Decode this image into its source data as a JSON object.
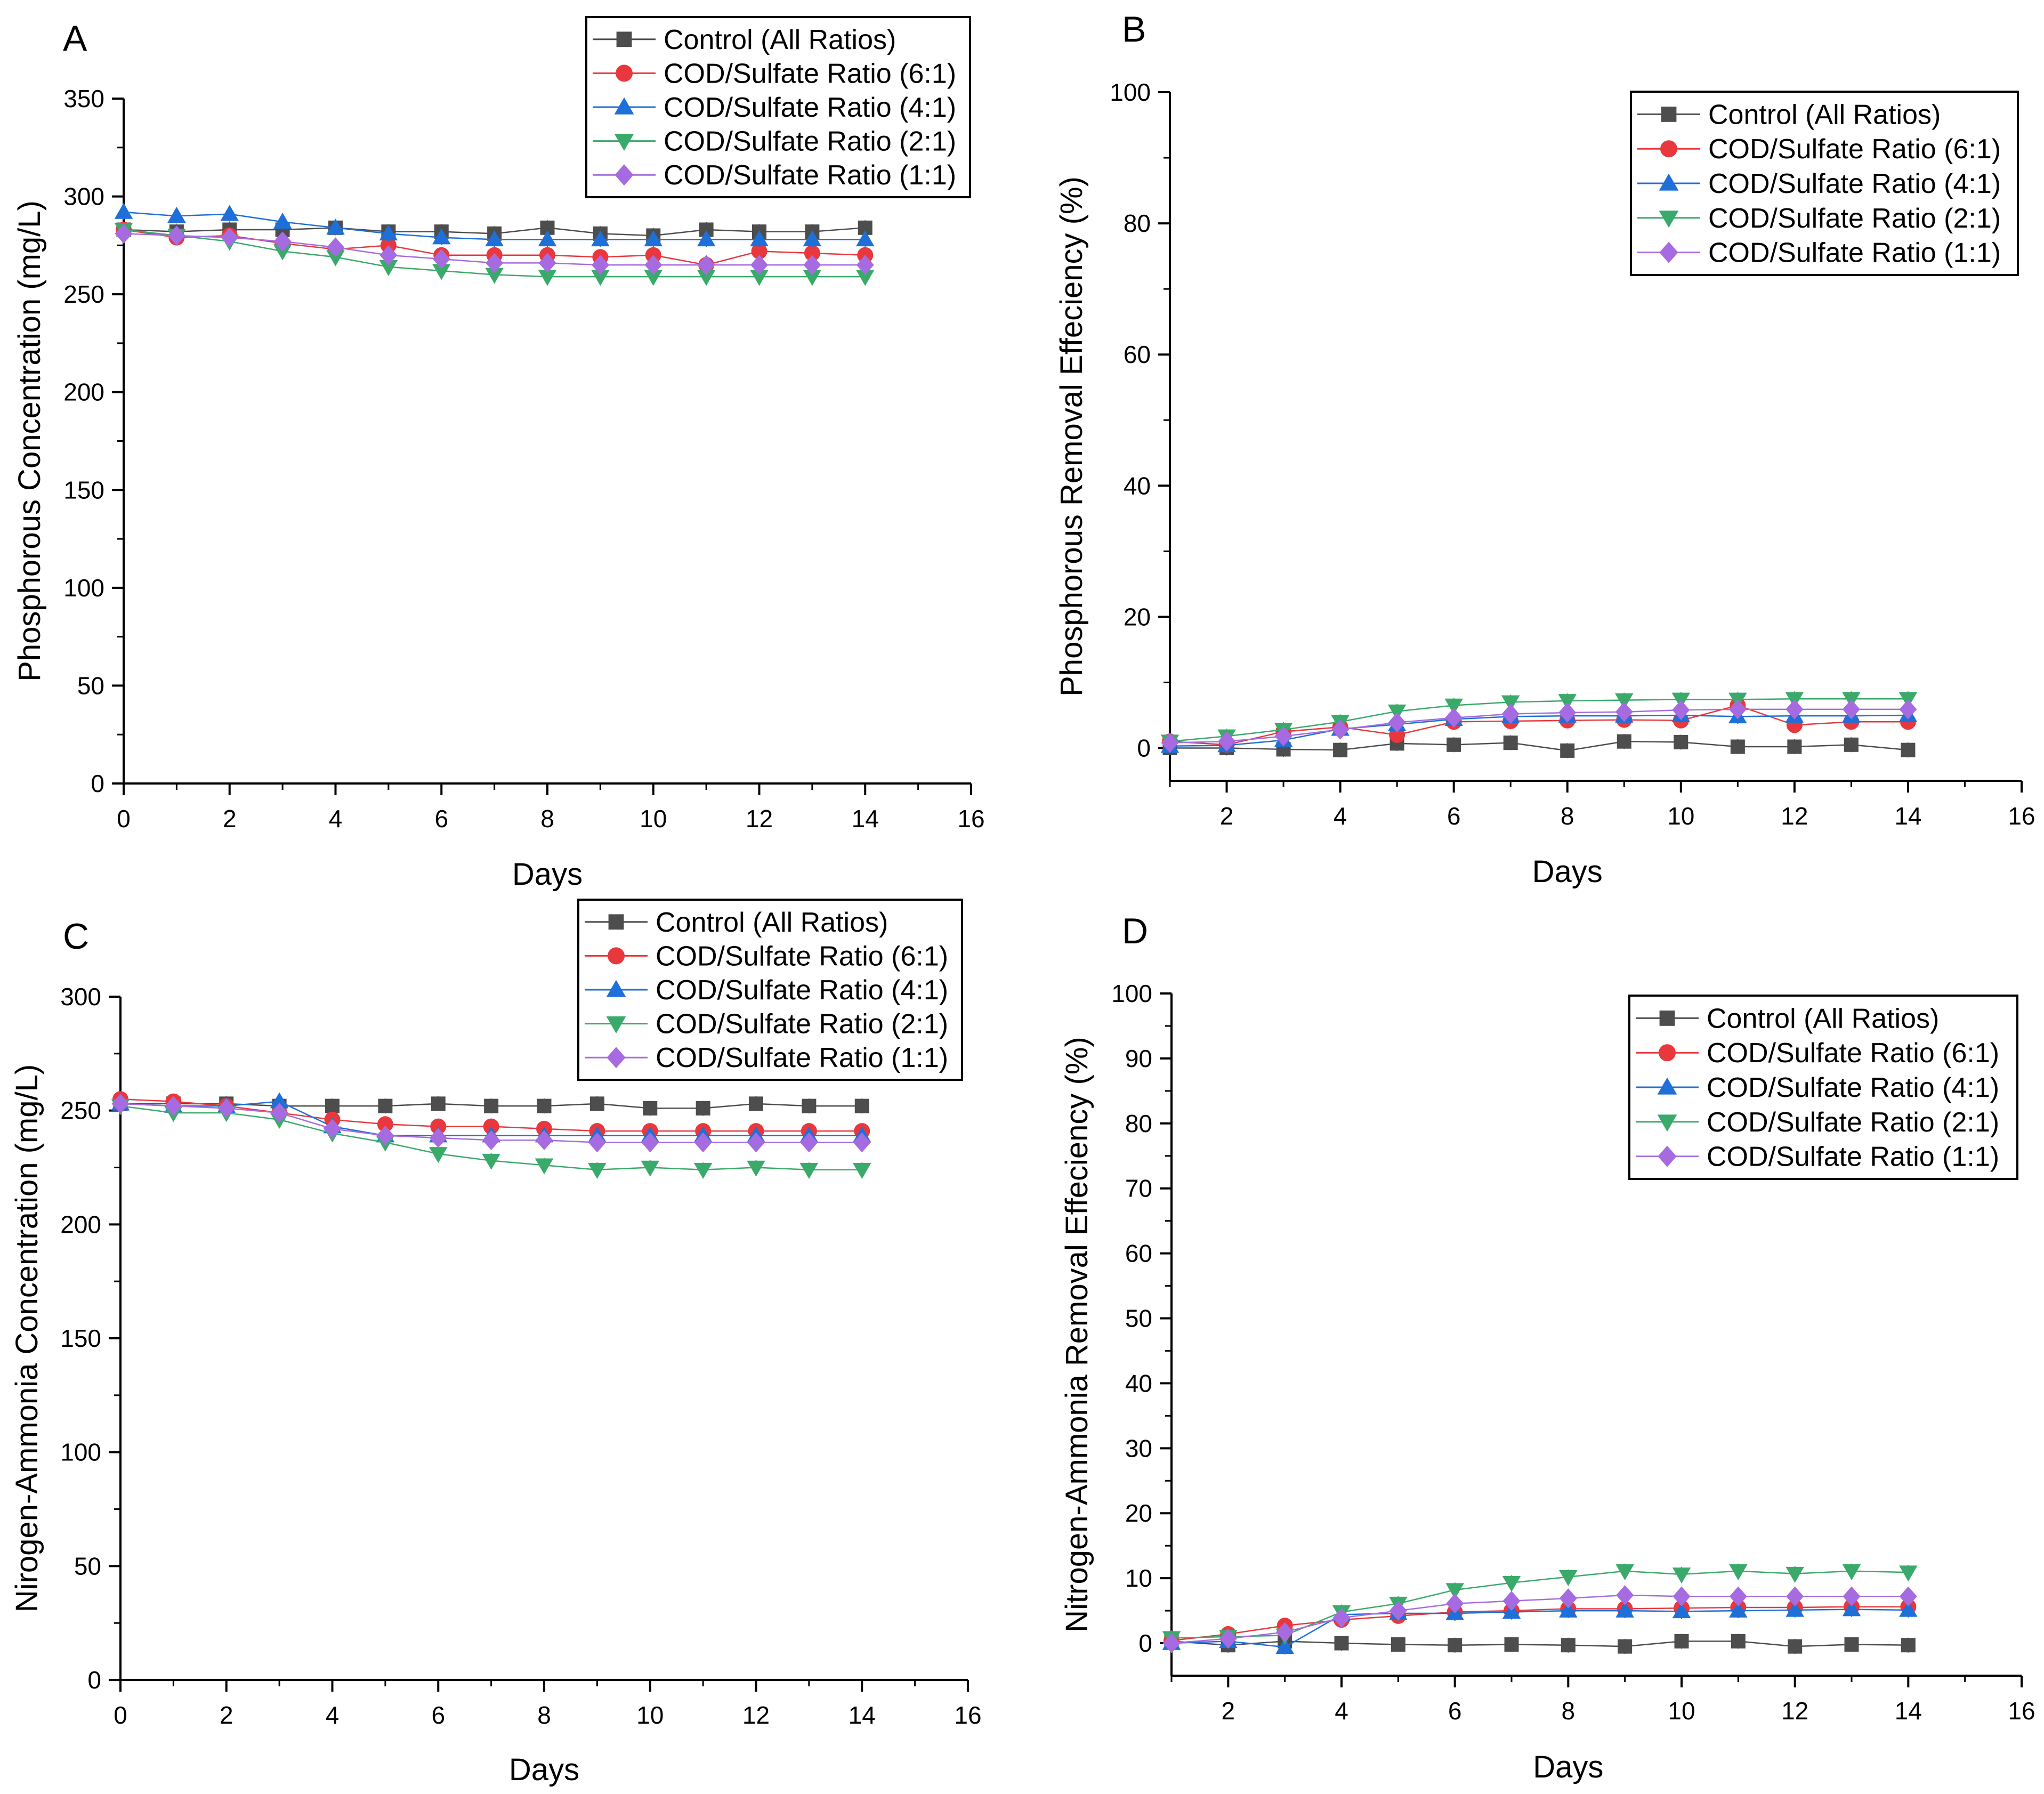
{
  "figure": {
    "panel_count": 4
  },
  "series_styles": [
    {
      "name": "Control (All Ratios)",
      "marker": "square",
      "color": "#4d4d4d"
    },
    {
      "name": "COD/Sulfate Ratio (6:1)",
      "marker": "circle",
      "color": "#e8383d"
    },
    {
      "name": "COD/Sulfate Ratio (4:1)",
      "marker": "triangle-up",
      "color": "#1f6fd8"
    },
    {
      "name": "COD/Sulfate Ratio (2:1)",
      "marker": "triangle-down",
      "color": "#3aaa6a"
    },
    {
      "name": "COD/Sulfate Ratio (1:1)",
      "marker": "diamond",
      "color": "#a66be0"
    }
  ],
  "chart_data": [
    {
      "panel": "A",
      "type": "line",
      "title": "",
      "xlabel": "Days",
      "ylabel": "Phosphorous Concentration (mg/L)",
      "xlim": [
        0,
        16
      ],
      "ylim": [
        0,
        350
      ],
      "xticks": [
        "0",
        "2",
        "4",
        "6",
        "8",
        "10",
        "12",
        "14",
        "16"
      ],
      "yticks": [
        "0",
        "50",
        "100",
        "150",
        "200",
        "250",
        "300",
        "350"
      ],
      "legend": "top-right",
      "x": [
        0,
        1,
        2,
        3,
        4,
        5,
        6,
        7,
        8,
        9,
        10,
        11,
        12,
        13,
        14
      ],
      "series": [
        {
          "name": "Control (All Ratios)",
          "values": [
            283,
            282,
            283,
            283,
            284,
            282,
            282,
            281,
            284,
            281,
            280,
            283,
            282,
            282,
            284
          ]
        },
        {
          "name": "COD/Sulfate Ratio (6:1)",
          "values": [
            283,
            279,
            280,
            276,
            273,
            275,
            270,
            270,
            270,
            269,
            270,
            265,
            272,
            271,
            270
          ]
        },
        {
          "name": "COD/Sulfate Ratio (4:1)",
          "values": [
            292,
            290,
            291,
            287,
            284,
            281,
            279,
            278,
            278,
            278,
            278,
            278,
            278,
            278,
            278
          ]
        },
        {
          "name": "COD/Sulfate Ratio (2:1)",
          "values": [
            283,
            280,
            277,
            272,
            269,
            264,
            262,
            260,
            259,
            259,
            259,
            259,
            259,
            259,
            259
          ]
        },
        {
          "name": "COD/Sulfate Ratio (1:1)",
          "values": [
            281,
            280,
            279,
            277,
            274,
            270,
            268,
            266,
            266,
            265,
            265,
            265,
            265,
            265,
            265
          ]
        }
      ]
    },
    {
      "panel": "B",
      "type": "line",
      "title": "",
      "xlabel": "Days",
      "ylabel": "Phosphorous Removal Effeciency (%)",
      "xlim": [
        1,
        16
      ],
      "ylim": [
        -5,
        100
      ],
      "xticks": [
        "2",
        "4",
        "6",
        "8",
        "10",
        "12",
        "14",
        "16"
      ],
      "yticks": [
        "0",
        "20",
        "40",
        "60",
        "80",
        "100"
      ],
      "legend": "top-right",
      "x": [
        1,
        2,
        3,
        4,
        5,
        6,
        7,
        8,
        9,
        10,
        11,
        12,
        13,
        14
      ],
      "series": [
        {
          "name": "Control (All Ratios)",
          "values": [
            0,
            0,
            -0.2,
            -0.3,
            0.7,
            0.5,
            0.8,
            -0.4,
            1.0,
            0.9,
            0.2,
            0.2,
            0.5,
            -0.3
          ]
        },
        {
          "name": "COD/Sulfate Ratio (6:1)",
          "values": [
            1.0,
            0.5,
            2.5,
            3.2,
            2.0,
            4.0,
            4.1,
            4.2,
            4.3,
            4.2,
            6.5,
            3.5,
            4.0,
            4.0
          ]
        },
        {
          "name": "COD/Sulfate Ratio (4:1)",
          "values": [
            0.3,
            0.4,
            1.2,
            2.9,
            3.6,
            4.4,
            4.8,
            4.9,
            4.9,
            5.0,
            4.8,
            4.9,
            4.9,
            5.0
          ]
        },
        {
          "name": "COD/Sulfate Ratio (2:1)",
          "values": [
            1.0,
            1.8,
            2.8,
            4.0,
            5.6,
            6.5,
            7.0,
            7.2,
            7.3,
            7.4,
            7.4,
            7.5,
            7.5,
            7.5
          ]
        },
        {
          "name": "COD/Sulfate Ratio (1:1)",
          "values": [
            0.8,
            1.0,
            1.8,
            2.8,
            3.9,
            4.6,
            5.2,
            5.4,
            5.5,
            5.8,
            5.9,
            5.9,
            5.9,
            5.9
          ]
        }
      ]
    },
    {
      "panel": "C",
      "type": "line",
      "title": "",
      "xlabel": "Days",
      "ylabel": "Nirogen-Ammonia Concentration (mg/L)",
      "xlim": [
        0,
        16
      ],
      "ylim": [
        0,
        300
      ],
      "xticks": [
        "0",
        "2",
        "4",
        "6",
        "8",
        "10",
        "12",
        "14",
        "16"
      ],
      "yticks": [
        "0",
        "50",
        "100",
        "150",
        "200",
        "250",
        "300"
      ],
      "legend": "top-right",
      "x": [
        0,
        1,
        2,
        3,
        4,
        5,
        6,
        7,
        8,
        9,
        10,
        11,
        12,
        13,
        14
      ],
      "series": [
        {
          "name": "Control (All Ratios)",
          "values": [
            253,
            253,
            253,
            252,
            252,
            252,
            253,
            252,
            252,
            253,
            251,
            251,
            253,
            252,
            252
          ]
        },
        {
          "name": "COD/Sulfate Ratio (6:1)",
          "values": [
            255,
            254,
            252,
            249,
            246,
            244,
            243,
            243,
            242,
            241,
            241,
            241,
            241,
            241,
            241
          ]
        },
        {
          "name": "COD/Sulfate Ratio (4:1)",
          "values": [
            253,
            252,
            252,
            254,
            243,
            239,
            239,
            239,
            239,
            239,
            239,
            239,
            239,
            239,
            239
          ]
        },
        {
          "name": "COD/Sulfate Ratio (2:1)",
          "values": [
            252,
            249,
            249,
            246,
            240,
            236,
            231,
            228,
            226,
            224,
            225,
            224,
            225,
            224,
            224
          ]
        },
        {
          "name": "COD/Sulfate Ratio (1:1)",
          "values": [
            253,
            252,
            251,
            249,
            242,
            239,
            238,
            237,
            237,
            236,
            236,
            236,
            236,
            236,
            236
          ]
        }
      ]
    },
    {
      "panel": "D",
      "type": "line",
      "title": "",
      "xlabel": "Days",
      "ylabel": "Nitrogen-Ammonia Removal Effeciency (%)",
      "xlim": [
        1,
        16
      ],
      "ylim": [
        -5,
        100
      ],
      "xticks": [
        "2",
        "4",
        "6",
        "8",
        "10",
        "12",
        "14",
        "16"
      ],
      "yticks": [
        "0",
        "10",
        "20",
        "30",
        "40",
        "50",
        "60",
        "70",
        "80",
        "90",
        "100"
      ],
      "legend": "top-right",
      "x": [
        1,
        2,
        3,
        4,
        5,
        6,
        7,
        8,
        9,
        10,
        11,
        12,
        13,
        14
      ],
      "series": [
        {
          "name": "Control (All Ratios)",
          "values": [
            0.3,
            -0.3,
            0.3,
            0,
            -0.2,
            -0.3,
            -0.2,
            -0.3,
            -0.5,
            0.3,
            0.3,
            -0.5,
            -0.2,
            -0.3
          ]
        },
        {
          "name": "COD/Sulfate Ratio (6:1)",
          "values": [
            0.4,
            1.4,
            2.7,
            3.6,
            4.2,
            4.8,
            5.0,
            5.3,
            5.3,
            5.4,
            5.5,
            5.5,
            5.6,
            5.6
          ]
        },
        {
          "name": "COD/Sulfate Ratio (4:1)",
          "values": [
            0,
            0.3,
            -0.6,
            4.4,
            4.6,
            4.6,
            4.8,
            5.0,
            5.0,
            4.9,
            5.0,
            5.1,
            5.2,
            5.1
          ]
        },
        {
          "name": "COD/Sulfate Ratio (2:1)",
          "values": [
            0.8,
            1.0,
            1.2,
            4.8,
            6.1,
            8.2,
            9.3,
            10.2,
            11.1,
            10.6,
            11.1,
            10.7,
            11.1,
            10.9
          ]
        },
        {
          "name": "COD/Sulfate Ratio (1:1)",
          "values": [
            0,
            0.7,
            1.7,
            3.9,
            5.0,
            6.1,
            6.5,
            6.9,
            7.4,
            7.2,
            7.2,
            7.2,
            7.2,
            7.2
          ]
        }
      ]
    }
  ]
}
